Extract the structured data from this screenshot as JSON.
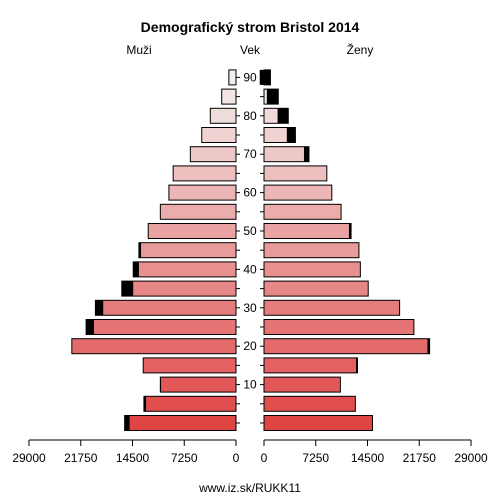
{
  "chart_data": {
    "type": "bar",
    "orientation": "horizontal",
    "subtype": "population-pyramid",
    "title": "Demografický strom Bristol 2014",
    "left_label": "Muži",
    "center_label": "Vek",
    "right_label": "Ženy",
    "source": "www.iz.sk/RUKK11",
    "age_groups": [
      "0-4",
      "5-9",
      "10-14",
      "15-19",
      "20-24",
      "25-29",
      "30-34",
      "35-39",
      "40-44",
      "45-49",
      "50-54",
      "55-59",
      "60-64",
      "65-69",
      "70-74",
      "75-79",
      "80-84",
      "85-89",
      "90+"
    ],
    "age_tick_labels": [
      "10",
      "20",
      "30",
      "40",
      "50",
      "60",
      "70",
      "80",
      "90"
    ],
    "x_tick_labels": [
      "29000",
      "21750",
      "14500",
      "7250",
      "0",
      "0",
      "7250",
      "14500",
      "21750",
      "29000"
    ],
    "xlim": [
      0,
      29000
    ],
    "series": [
      {
        "name": "Muži",
        "side": "left",
        "values": [
          15600,
          12900,
          10600,
          13000,
          23000,
          21000,
          19700,
          16000,
          14400,
          13600,
          12300,
          10600,
          9400,
          8800,
          6400,
          4800,
          3600,
          2000,
          1000
        ],
        "excess": [
          700,
          300,
          100,
          0,
          0,
          1100,
          1100,
          1600,
          800,
          300,
          0,
          0,
          0,
          0,
          0,
          0,
          0,
          0,
          0
        ]
      },
      {
        "name": "Ženy",
        "side": "right",
        "values": [
          15200,
          12800,
          10700,
          13100,
          23200,
          21000,
          19000,
          14600,
          13500,
          13300,
          12200,
          10800,
          9500,
          8800,
          6300,
          4400,
          3400,
          2000,
          900
        ],
        "excess": [
          0,
          0,
          0,
          200,
          300,
          0,
          0,
          0,
          0,
          0,
          300,
          0,
          0,
          0,
          700,
          1200,
          1500,
          1600,
          1500
        ]
      }
    ],
    "colors": {
      "light": "#f2eeee",
      "dark": "#e04545",
      "excess": "#000000",
      "outline": "#000000"
    }
  }
}
